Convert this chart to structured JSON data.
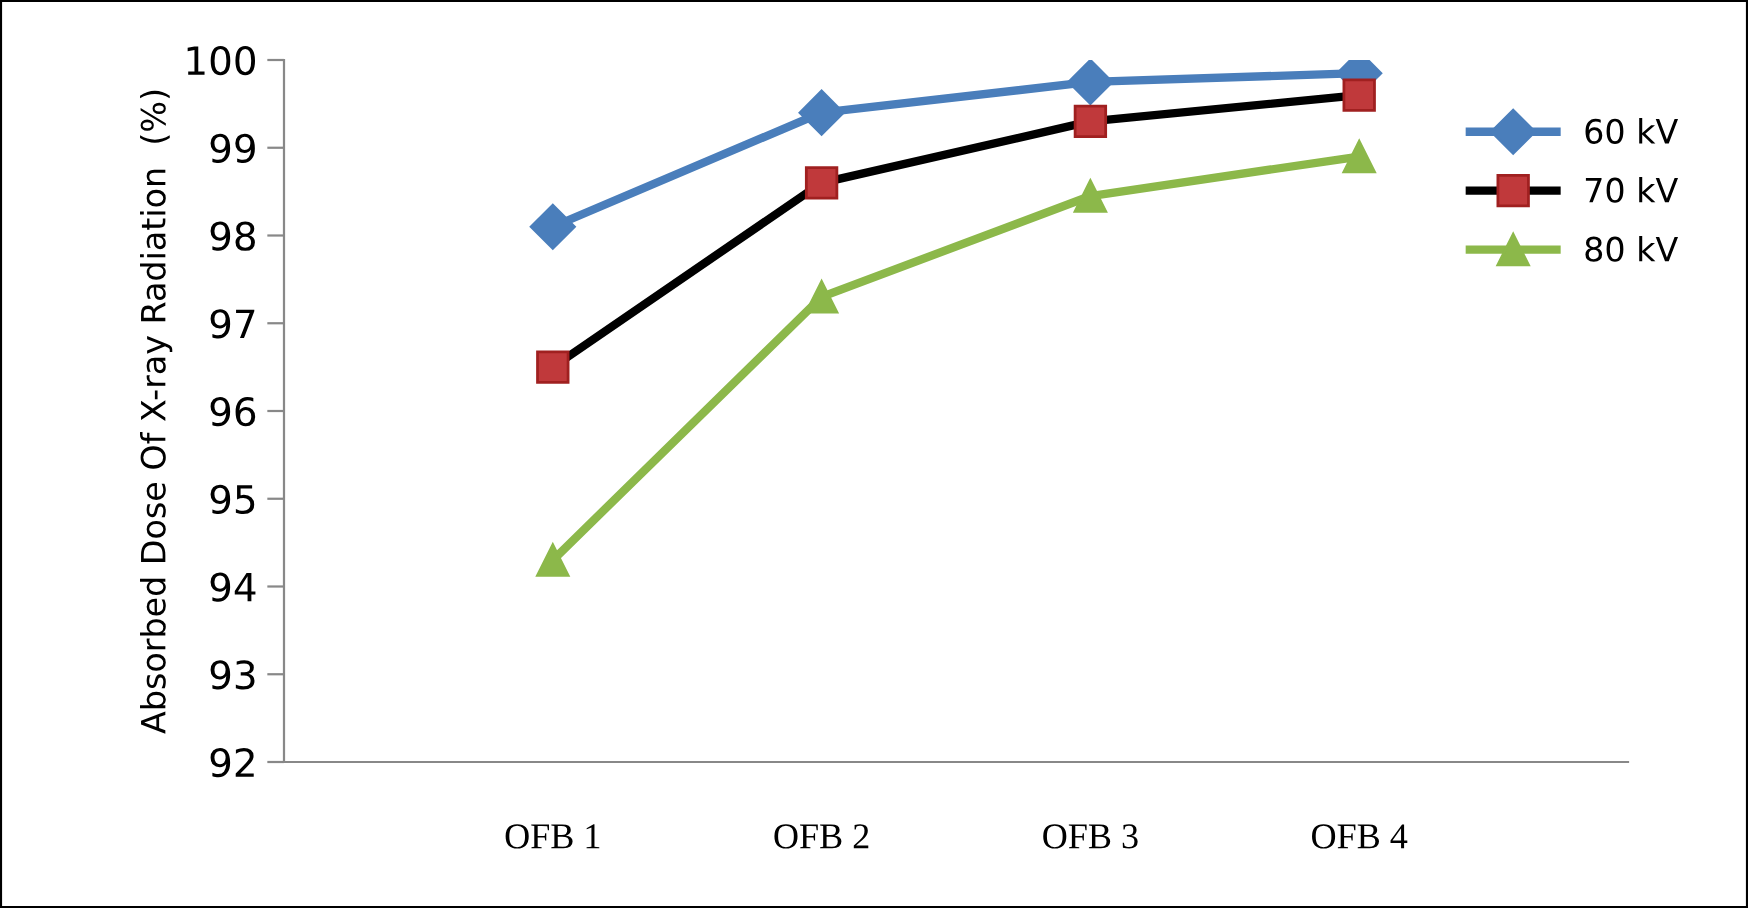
{
  "chart_data": {
    "type": "line",
    "ylabel": "Absorbed Dose Of X-ray Radiation  (%)",
    "categories": [
      "OFB 1",
      "OFB 2",
      "OFB 3",
      "OFB 4"
    ],
    "series": [
      {
        "name": "60 kV",
        "color": "#4a7ebb",
        "marker": "diamond",
        "values": [
          98.1,
          99.4,
          99.75,
          99.85
        ]
      },
      {
        "name": "70 kV",
        "color": "#000000",
        "marker": "square",
        "values": [
          96.5,
          98.6,
          99.3,
          99.6
        ]
      },
      {
        "name": "80 kV",
        "color": "#8cb84a",
        "marker": "triangle",
        "values": [
          94.3,
          97.3,
          98.45,
          98.9
        ]
      }
    ],
    "ylim": [
      92,
      100
    ],
    "yticks": [
      92,
      93,
      94,
      95,
      96,
      97,
      98,
      99,
      100
    ],
    "grid": false,
    "legend": "top right",
    "line_style": "solid"
  }
}
